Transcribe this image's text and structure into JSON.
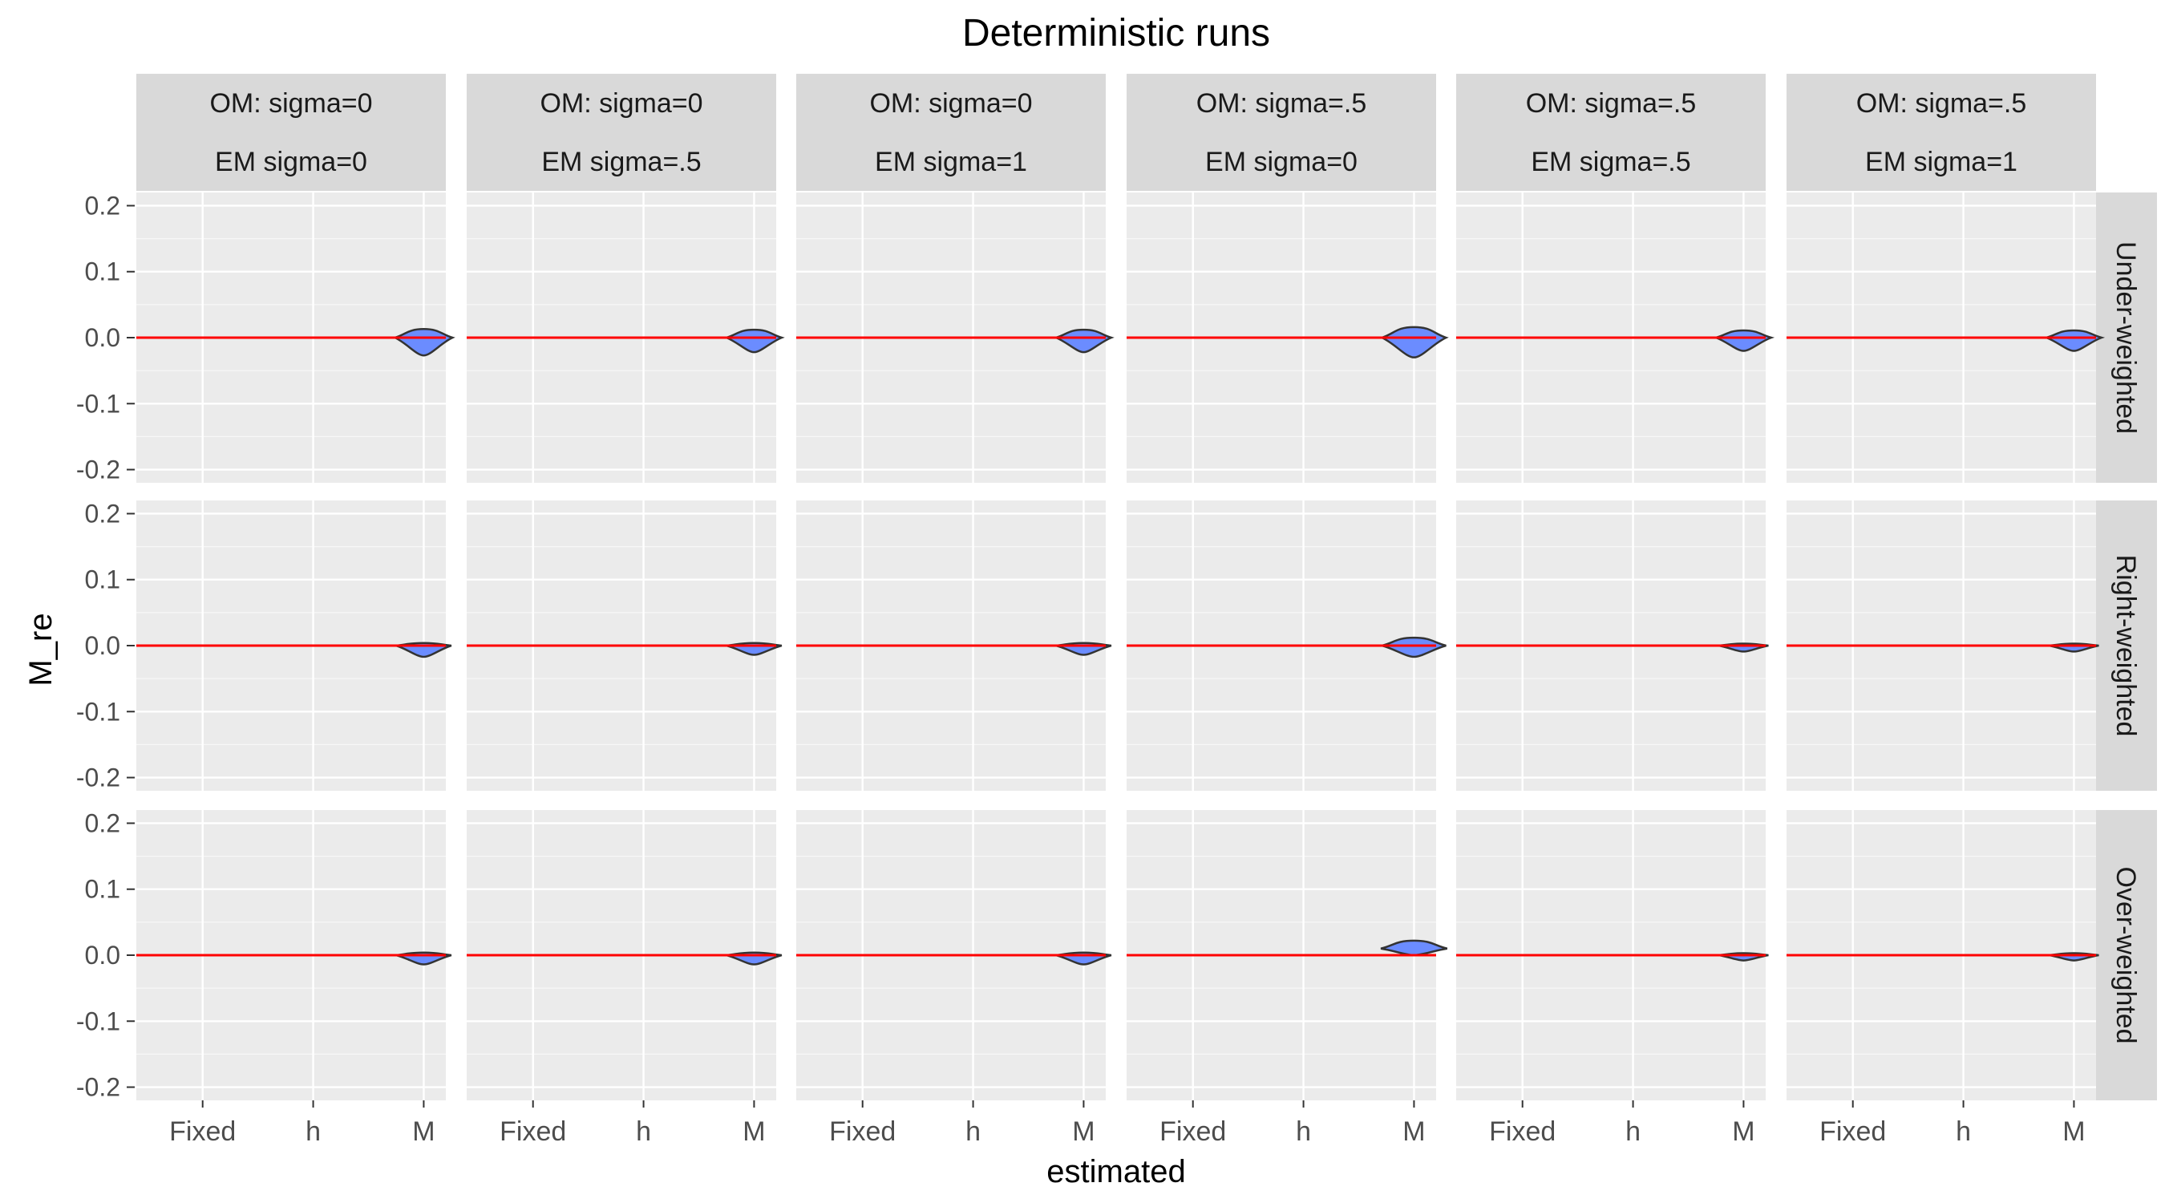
{
  "chart_data": {
    "type": "violin",
    "title": "Deterministic runs",
    "xlabel": "estimated",
    "ylabel": "M_re",
    "categories": [
      "Fixed",
      "h",
      "M"
    ],
    "ylim": [
      -0.22,
      0.22
    ],
    "yticks": [
      -0.2,
      -0.1,
      0.0,
      0.1,
      0.2
    ],
    "ytick_labels": [
      "-0.2",
      "-0.1",
      "0.0",
      "0.1",
      "0.2"
    ],
    "reference_line": {
      "y": 0.0,
      "color": "#ff0000"
    },
    "grid": true,
    "colors": {
      "violin_fill": "#6b8cff",
      "violin_stroke": "#333333",
      "panel_bg": "#ebebeb",
      "strip_bg": "#d9d9d9",
      "grid": "#ffffff"
    },
    "col_facets": [
      {
        "om": "OM: sigma=0",
        "em": "EM sigma=0"
      },
      {
        "om": "OM: sigma=0",
        "em": "EM sigma=.5"
      },
      {
        "om": "OM: sigma=0",
        "em": "EM sigma=1"
      },
      {
        "om": "OM: sigma=.5",
        "em": "EM sigma=0"
      },
      {
        "om": "OM: sigma=.5",
        "em": "EM sigma=.5"
      },
      {
        "om": "OM: sigma=.5",
        "em": "EM sigma=1"
      }
    ],
    "row_facets": [
      "Under-weighted",
      "Right-weighted",
      "Over-weighted"
    ],
    "violins": [
      [
        {
          "category": "M",
          "min": -0.027,
          "max": 0.013,
          "center": 0.0,
          "width": 0.52
        },
        {
          "category": "M",
          "min": -0.022,
          "max": 0.012,
          "center": 0.0,
          "width": 0.5
        },
        {
          "category": "M",
          "min": -0.022,
          "max": 0.012,
          "center": 0.0,
          "width": 0.5
        },
        {
          "category": "M",
          "min": -0.03,
          "max": 0.016,
          "center": 0.0,
          "width": 0.58
        },
        {
          "category": "M",
          "min": -0.02,
          "max": 0.011,
          "center": 0.0,
          "width": 0.5
        },
        {
          "category": "M",
          "min": -0.02,
          "max": 0.011,
          "center": 0.0,
          "width": 0.5
        }
      ],
      [
        {
          "category": "M",
          "min": -0.017,
          "max": 0.004,
          "center": 0.0,
          "width": 0.5
        },
        {
          "category": "M",
          "min": -0.014,
          "max": 0.004,
          "center": 0.0,
          "width": 0.5
        },
        {
          "category": "M",
          "min": -0.014,
          "max": 0.004,
          "center": 0.0,
          "width": 0.5
        },
        {
          "category": "M",
          "min": -0.017,
          "max": 0.012,
          "center": 0.0,
          "width": 0.58
        },
        {
          "category": "M",
          "min": -0.009,
          "max": 0.003,
          "center": 0.0,
          "width": 0.45
        },
        {
          "category": "M",
          "min": -0.009,
          "max": 0.003,
          "center": 0.0,
          "width": 0.45
        }
      ],
      [
        {
          "category": "M",
          "min": -0.014,
          "max": 0.004,
          "center": 0.0,
          "width": 0.5
        },
        {
          "category": "M",
          "min": -0.014,
          "max": 0.004,
          "center": 0.0,
          "width": 0.5
        },
        {
          "category": "M",
          "min": -0.014,
          "max": 0.004,
          "center": 0.0,
          "width": 0.5
        },
        {
          "category": "M",
          "min": 0.0,
          "max": 0.022,
          "center": 0.01,
          "width": 0.6
        },
        {
          "category": "M",
          "min": -0.008,
          "max": 0.003,
          "center": 0.0,
          "width": 0.45
        },
        {
          "category": "M",
          "min": -0.008,
          "max": 0.003,
          "center": 0.0,
          "width": 0.45
        }
      ]
    ]
  }
}
